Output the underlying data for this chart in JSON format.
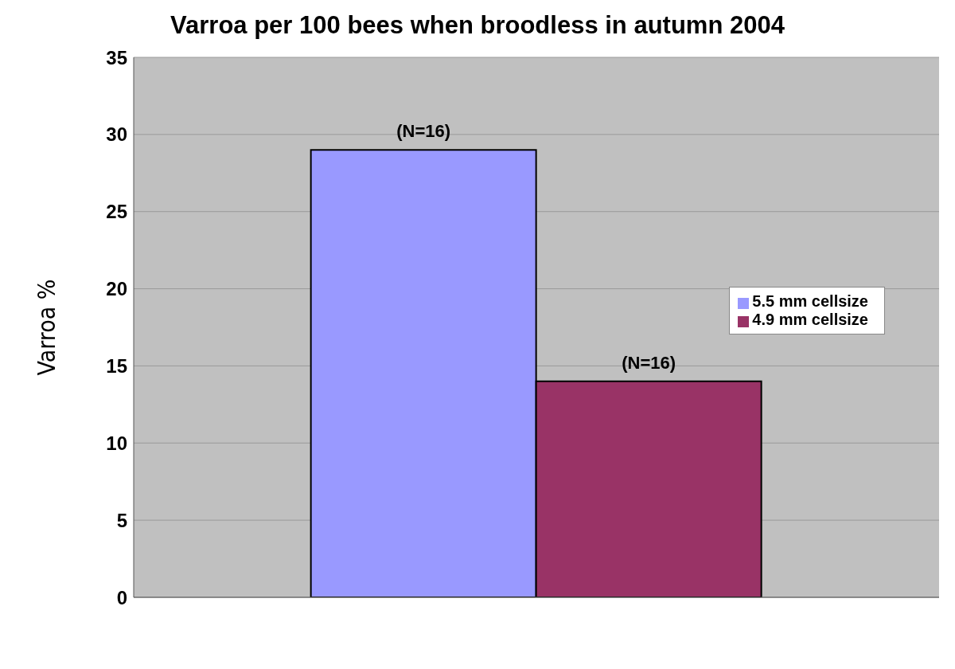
{
  "chart_data": {
    "type": "bar",
    "title": "Varroa per 100 bees when broodless in autumn 2004",
    "ylabel": "Varroa %",
    "categories": [
      null
    ],
    "series": [
      {
        "name": "5.5 mm cellsize",
        "color": "#9999ff",
        "values": [
          29
        ]
      },
      {
        "name": "4.9 mm cellsize",
        "color": "#993366",
        "values": [
          14
        ]
      }
    ],
    "annotations": [
      {
        "text": "(N=16)",
        "y": 29
      },
      {
        "text": "(N=16)",
        "y": 14
      }
    ],
    "ylim": [
      0,
      35
    ],
    "yticks": [
      0,
      5,
      10,
      15,
      20,
      25,
      30,
      35
    ],
    "grid": "y",
    "legend": "right"
  }
}
